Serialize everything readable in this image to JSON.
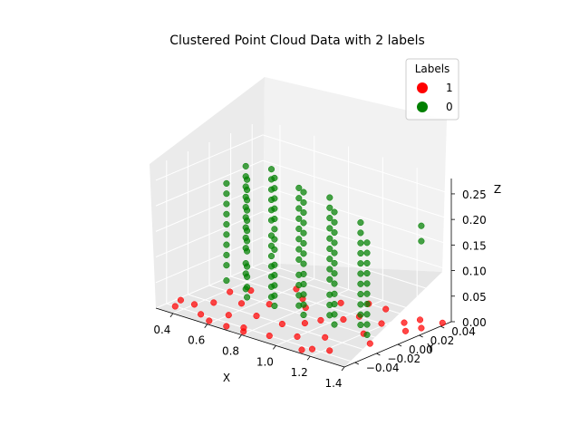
{
  "chart_data": {
    "type": "scatter",
    "projection": "3d",
    "title": "Clustered Point Cloud Data with 2 labels",
    "xlabel": "X",
    "ylabel": "Y",
    "zlabel": "Z",
    "xlim": [
      0.3,
      1.4
    ],
    "ylim": [
      -0.05,
      0.05
    ],
    "zlim": [
      0.0,
      0.28
    ],
    "x_ticks": [
      "0.4",
      "0.6",
      "0.8",
      "1.0",
      "1.2",
      "1.4"
    ],
    "y_ticks": [
      "−0.04",
      "−0.02",
      "0.00",
      "0.02",
      "0.04"
    ],
    "z_ticks": [
      "0.00",
      "0.05",
      "0.10",
      "0.15",
      "0.20",
      "0.25"
    ],
    "grid": true,
    "legend": {
      "title": "Labels",
      "placement": "top-right",
      "entries": [
        {
          "label": "1",
          "color": "#ff0000"
        },
        {
          "label": "0",
          "color": "#008000"
        }
      ]
    },
    "series": [
      {
        "name": "1",
        "color": "#ff0000",
        "points": [
          [
            0.32,
            -0.03,
            0.0
          ],
          [
            0.4,
            -0.03,
            0.0
          ],
          [
            0.45,
            -0.02,
            0.0
          ],
          [
            0.5,
            -0.04,
            0.0
          ],
          [
            0.55,
            -0.01,
            0.0
          ],
          [
            0.6,
            -0.03,
            0.0
          ],
          [
            0.65,
            0.0,
            0.0
          ],
          [
            0.7,
            -0.02,
            0.0
          ],
          [
            0.75,
            -0.04,
            0.0
          ],
          [
            0.8,
            0.01,
            0.0
          ],
          [
            0.85,
            -0.02,
            0.0
          ],
          [
            0.9,
            -0.04,
            0.0
          ],
          [
            0.95,
            0.0,
            0.0
          ],
          [
            1.0,
            -0.03,
            0.0
          ],
          [
            1.05,
            0.02,
            0.0
          ],
          [
            1.1,
            -0.02,
            0.0
          ],
          [
            1.15,
            -0.04,
            0.0
          ],
          [
            1.2,
            0.0,
            0.0
          ],
          [
            1.25,
            0.03,
            0.0
          ],
          [
            1.3,
            -0.01,
            0.0
          ],
          [
            0.35,
            -0.04,
            0.0
          ],
          [
            0.48,
            0.01,
            0.0
          ],
          [
            0.62,
            0.03,
            0.0
          ],
          [
            0.72,
            0.02,
            0.0
          ],
          [
            0.88,
            0.03,
            0.0
          ],
          [
            0.98,
            0.04,
            0.0
          ],
          [
            1.08,
            0.04,
            0.0
          ],
          [
            1.18,
            0.02,
            0.0
          ],
          [
            1.28,
            0.04,
            0.0
          ],
          [
            1.35,
            0.03,
            0.0
          ],
          [
            0.58,
            -0.045,
            0.0
          ],
          [
            0.78,
            -0.045,
            0.0
          ],
          [
            0.92,
            -0.01,
            0.0
          ],
          [
            1.12,
            -0.045,
            0.0
          ],
          [
            1.38,
            0.045,
            0.0
          ],
          [
            0.42,
            0.0,
            0.0
          ],
          [
            0.68,
            -0.045,
            0.0
          ],
          [
            1.02,
            0.01,
            0.0
          ],
          [
            1.22,
            -0.035,
            0.0
          ],
          [
            1.32,
            0.02,
            0.0
          ]
        ]
      },
      {
        "name": "0",
        "color": "#008000",
        "columns": [
          {
            "x": 0.4,
            "y": 0.0,
            "z": [
              0.02,
              0.05,
              0.07,
              0.09,
              0.11,
              0.13,
              0.15,
              0.17,
              0.19,
              0.21
            ]
          },
          {
            "x": 0.45,
            "y": 0.01,
            "z": [
              0.0,
              0.03,
              0.05,
              0.08,
              0.1,
              0.12,
              0.14,
              0.16,
              0.18,
              0.2,
              0.22,
              0.24
            ]
          },
          {
            "x": 0.52,
            "y": 0.0,
            "z": [
              0.0,
              0.02,
              0.04,
              0.06,
              0.09,
              0.11,
              0.13,
              0.15,
              0.17,
              0.19,
              0.21,
              0.23
            ]
          },
          {
            "x": 0.6,
            "y": 0.01,
            "z": [
              0.0,
              0.02,
              0.04,
              0.06,
              0.08,
              0.1,
              0.12,
              0.15,
              0.17,
              0.19,
              0.21,
              0.23,
              0.25
            ]
          },
          {
            "x": 0.68,
            "y": 0.0,
            "z": [
              0.0,
              0.02,
              0.04,
              0.06,
              0.08,
              0.11,
              0.13,
              0.15,
              0.17,
              0.19,
              0.21,
              0.23,
              0.25
            ]
          },
          {
            "x": 0.76,
            "y": 0.01,
            "z": [
              0.0,
              0.02,
              0.04,
              0.06,
              0.09,
              0.11,
              0.13,
              0.15,
              0.17,
              0.19,
              0.21,
              0.23
            ]
          },
          {
            "x": 0.85,
            "y": 0.0,
            "z": [
              0.0,
              0.02,
              0.04,
              0.06,
              0.08,
              0.1,
              0.12,
              0.14,
              0.16,
              0.18,
              0.2,
              0.22,
              0.24
            ]
          },
          {
            "x": 0.94,
            "y": 0.01,
            "z": [
              0.0,
              0.02,
              0.04,
              0.07,
              0.09,
              0.11,
              0.13,
              0.15,
              0.17,
              0.19,
              0.21,
              0.23
            ]
          },
          {
            "x": 1.03,
            "y": 0.0,
            "z": [
              0.0,
              0.02,
              0.04,
              0.06,
              0.08,
              0.1,
              0.12,
              0.14,
              0.16,
              0.18,
              0.2,
              0.22
            ]
          },
          {
            "x": 1.12,
            "y": 0.01,
            "z": [
              0.0,
              0.02,
              0.04,
              0.06,
              0.08,
              0.1,
              0.12,
              0.14,
              0.16,
              0.18,
              0.2
            ]
          },
          {
            "x": 1.22,
            "y": 0.0,
            "z": [
              0.0,
              0.02,
              0.04,
              0.06,
              0.08,
              0.1,
              0.12,
              0.14,
              0.16,
              0.18
            ]
          },
          {
            "x": 1.35,
            "y": 0.03,
            "z": [
              0.17,
              0.2
            ]
          }
        ]
      }
    ]
  }
}
